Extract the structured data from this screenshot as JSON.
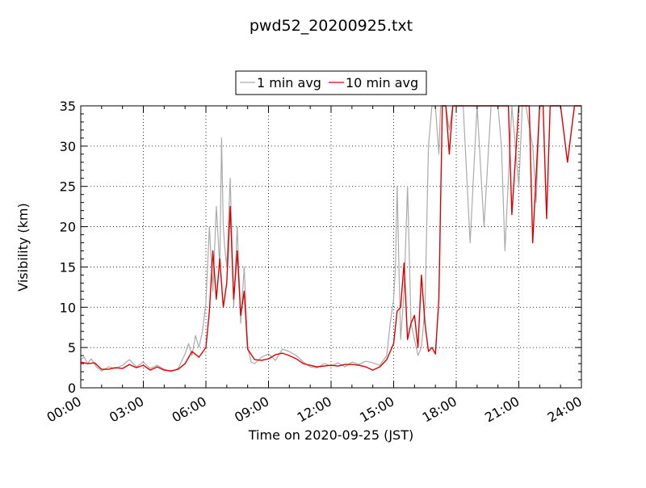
{
  "chart_data": {
    "type": "line",
    "title": "pwd52_20200925.txt",
    "xlabel": "Time on 2020-09-25 (JST)",
    "ylabel": "Visibility (km)",
    "xlim": [
      "00:00",
      "24:00"
    ],
    "ylim": [
      0,
      35
    ],
    "x_ticks": [
      "00:00",
      "03:00",
      "06:00",
      "09:00",
      "12:00",
      "15:00",
      "18:00",
      "21:00",
      "24:00"
    ],
    "y_ticks": [
      "0",
      "5",
      "10",
      "15",
      "20",
      "25",
      "30",
      "35"
    ],
    "grid": true,
    "legend": {
      "placement": "top-center",
      "entries": [
        "1 min avg",
        "10 min avg"
      ]
    },
    "series": [
      {
        "name": "1 min avg",
        "color": "#aaaaaa",
        "x": [
          "00:00",
          "00:10",
          "00:20",
          "00:30",
          "00:45",
          "01:00",
          "01:20",
          "01:40",
          "02:00",
          "02:20",
          "02:40",
          "03:00",
          "03:20",
          "03:40",
          "04:00",
          "04:20",
          "04:40",
          "05:00",
          "05:10",
          "05:20",
          "05:30",
          "05:40",
          "05:50",
          "06:00",
          "06:10",
          "06:20",
          "06:30",
          "06:40",
          "06:45",
          "06:50",
          "06:55",
          "07:00",
          "07:10",
          "07:20",
          "07:30",
          "07:40",
          "07:50",
          "08:00",
          "08:10",
          "08:20",
          "08:40",
          "09:00",
          "09:20",
          "09:40",
          "10:00",
          "10:20",
          "10:40",
          "11:00",
          "11:20",
          "11:40",
          "12:00",
          "12:20",
          "12:40",
          "13:00",
          "13:20",
          "13:40",
          "14:00",
          "14:20",
          "14:40",
          "14:50",
          "15:00",
          "15:05",
          "15:10",
          "15:20",
          "15:30",
          "15:40",
          "15:50",
          "16:00",
          "16:10",
          "16:20",
          "16:30",
          "16:40",
          "16:50",
          "17:00",
          "17:10",
          "17:15",
          "17:20",
          "17:30",
          "17:40",
          "17:50",
          "18:00",
          "18:20",
          "18:40",
          "19:00",
          "19:20",
          "19:40",
          "20:00",
          "20:10",
          "20:20",
          "20:40",
          "21:00",
          "21:10",
          "21:20",
          "21:40",
          "21:50",
          "22:00",
          "22:10",
          "22:20",
          "22:40",
          "23:00",
          "23:20",
          "23:40",
          "24:00"
        ],
        "y": [
          3.5,
          3.8,
          3.0,
          3.6,
          2.6,
          2.1,
          2.6,
          2.4,
          2.8,
          3.5,
          2.6,
          3.2,
          2.4,
          2.8,
          2.3,
          2.0,
          2.4,
          4.2,
          5.5,
          4.0,
          6.5,
          5.0,
          7.0,
          10.5,
          20.0,
          12.0,
          22.5,
          15.0,
          31.0,
          20.0,
          17.0,
          15.0,
          26.0,
          10.0,
          20.0,
          8.0,
          15.0,
          5.0,
          3.2,
          3.0,
          3.8,
          4.2,
          3.4,
          4.8,
          4.5,
          4.0,
          3.2,
          2.6,
          2.5,
          3.0,
          2.7,
          3.1,
          2.6,
          3.2,
          2.9,
          3.3,
          3.1,
          2.8,
          4.0,
          8.0,
          11.0,
          15.0,
          25.0,
          6.0,
          12.0,
          25.0,
          8.0,
          6.0,
          4.0,
          5.0,
          10.0,
          30.0,
          35,
          35,
          29.0,
          35,
          35,
          35,
          32.0,
          35,
          35,
          35,
          18.0,
          35,
          20.0,
          35,
          35,
          30.0,
          17.0,
          35,
          25.0,
          35,
          35,
          30.0,
          23.0,
          35,
          35,
          35,
          35,
          35,
          35,
          35,
          35
        ]
      },
      {
        "name": "10 min avg",
        "color": "#dd0000",
        "x": [
          "00:00",
          "00:20",
          "00:40",
          "01:00",
          "01:20",
          "01:40",
          "02:00",
          "02:20",
          "02:40",
          "03:00",
          "03:20",
          "03:40",
          "04:00",
          "04:20",
          "04:40",
          "05:00",
          "05:20",
          "05:40",
          "06:00",
          "06:10",
          "06:20",
          "06:30",
          "06:40",
          "06:50",
          "07:00",
          "07:10",
          "07:20",
          "07:30",
          "07:40",
          "07:50",
          "08:00",
          "08:20",
          "08:40",
          "09:00",
          "09:20",
          "09:40",
          "10:00",
          "10:20",
          "10:40",
          "11:00",
          "11:20",
          "11:40",
          "12:00",
          "12:20",
          "12:40",
          "13:00",
          "13:20",
          "13:40",
          "14:00",
          "14:20",
          "14:40",
          "15:00",
          "15:10",
          "15:20",
          "15:30",
          "15:40",
          "15:50",
          "16:00",
          "16:10",
          "16:20",
          "16:30",
          "16:40",
          "16:50",
          "17:00",
          "17:10",
          "17:20",
          "17:30",
          "17:40",
          "17:50",
          "18:00",
          "18:20",
          "18:40",
          "19:00",
          "19:20",
          "19:40",
          "20:00",
          "20:10",
          "20:20",
          "20:30",
          "20:40",
          "21:00",
          "21:10",
          "21:20",
          "21:30",
          "21:40",
          "22:00",
          "22:10",
          "22:20",
          "22:30",
          "22:40",
          "23:00",
          "23:20",
          "23:40",
          "24:00"
        ],
        "y": [
          3.2,
          3.0,
          3.1,
          2.3,
          2.3,
          2.5,
          2.4,
          2.9,
          2.5,
          2.8,
          2.2,
          2.6,
          2.2,
          2.1,
          2.3,
          3.0,
          4.5,
          3.8,
          5.0,
          9.5,
          17.0,
          11.0,
          16.0,
          10.0,
          13.0,
          22.5,
          11.0,
          17.0,
          9.0,
          12.0,
          4.8,
          3.5,
          3.4,
          3.6,
          4.1,
          4.3,
          4.0,
          3.6,
          3.0,
          2.8,
          2.6,
          2.7,
          2.8,
          2.7,
          2.9,
          2.9,
          2.8,
          2.6,
          2.2,
          2.6,
          3.5,
          5.5,
          9.5,
          10.0,
          15.5,
          6.0,
          8.0,
          9.0,
          5.0,
          14.0,
          8.0,
          4.5,
          5.0,
          4.2,
          11.0,
          35,
          35,
          29.0,
          35,
          35,
          35,
          35,
          35,
          35,
          35,
          35,
          35,
          35,
          35,
          21.5,
          35,
          35,
          35,
          35,
          18.0,
          35,
          35,
          21.0,
          35,
          35,
          35,
          28.0,
          35,
          35
        ]
      }
    ]
  }
}
